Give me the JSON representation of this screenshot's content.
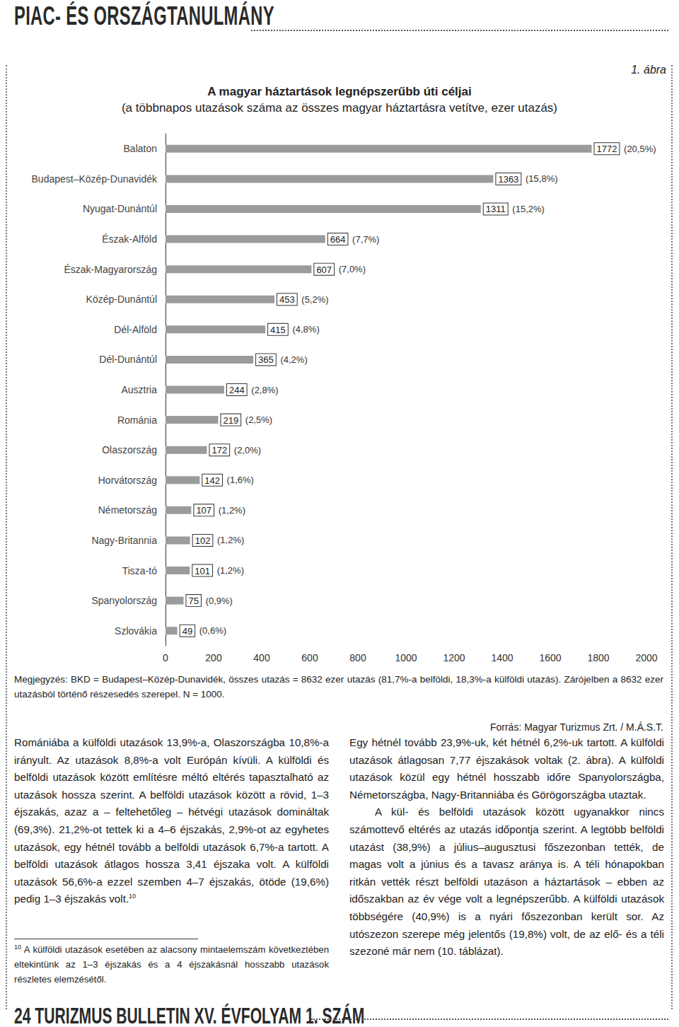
{
  "header": {
    "section": "PIAC- ÉS ORSZÁGTANULMÁNY"
  },
  "figure": {
    "number": "1. ábra",
    "note": "Megjegyzés: BKD = Budapest–Közép-Dunavidék, összes utazás = 8632 ezer utazás (81,7%-a belföldi, 18,3%-a külföldi utazás). Zárójelben a 8632 ezer utazásból történő részesedés szerepel. N = 1000.",
    "source": "Forrás: Magyar Turizmus Zrt. / M.Á.S.T."
  },
  "chart_data": {
    "type": "bar",
    "orientation": "horizontal",
    "title": "A magyar háztartások legnépszerűbb úti céljai",
    "subtitle": "(a többnapos utazások száma az összes magyar háztartásra vetítve, ezer utazás)",
    "categories": [
      "Balaton",
      "Budapest–Közép-Dunavidék",
      "Nyugat-Dunántúl",
      "Észak-Alföld",
      "Észak-Magyarország",
      "Közép-Dunántúl",
      "Dél-Alföld",
      "Dél-Dunántúl",
      "Ausztria",
      "Románia",
      "Olaszország",
      "Horvátország",
      "Németország",
      "Nagy-Britannia",
      "Tisza-tó",
      "Spanyolország",
      "Szlovákia"
    ],
    "values": [
      1772,
      1363,
      1311,
      664,
      607,
      453,
      415,
      365,
      244,
      219,
      172,
      142,
      107,
      102,
      101,
      75,
      49
    ],
    "share_labels": [
      "(20,5%)",
      "(15,8%)",
      "(15,2%)",
      "(7,7%)",
      "(7,0%)",
      "(5,2%)",
      "(4,8%)",
      "(4,2%)",
      "(2,8%)",
      "(2,5%)",
      "(2,0%)",
      "(1,6%)",
      "(1,2%)",
      "(1,2%)",
      "(1,2%)",
      "(0,9%)",
      "(0,6%)"
    ],
    "color": "#9b9b9b",
    "xlim": [
      0,
      2000
    ],
    "xticks": [
      0,
      200,
      400,
      600,
      800,
      1000,
      1200,
      1400,
      1600,
      1800,
      2000
    ],
    "grid": false,
    "data_labels": true
  },
  "columns": [
    {
      "paragraphs": [
        {
          "text": "Romániába a külföldi utazások 13,9%-a, Olaszországba 10,8%-a irányult. Az utazások 8,8%-a volt Európán kívüli. A külföldi és belföldi utazások között említésre méltó eltérés tapasztalható az utazások hossza szerint. A belföldi utazások között a rövid, 1–3 éjszakás, azaz a – feltehetőleg – hétvégi utazások domináltak (69,3%). 21,2%-ot tettek ki a 4–6 éjszakás, 2,9%-ot az egyhetes utazások, egy hétnél tovább a belföldi utazások 6,7%-a tartott. A belföldi utazások átlagos hossza 3,41 éjszaka volt. A külföldi utazások 56,6%-a ezzel szemben 4–7 éjszakás, ötöde (19,6%) pedig 1–3 éjszakás volt.",
          "note_ref": "10"
        }
      ]
    },
    {
      "paragraphs": [
        {
          "text": "Egy hétnél tovább 23,9%-uk, két hétnél 6,2%-uk tartott. A külföldi utazások átlagosan 7,77 éjszakások voltak (2. ábra). A külföldi utazások közül egy hétnél hosszabb időre Spanyolországba, Németországba, Nagy-Britanniába és Görögországba utaztak."
        },
        {
          "text": "A kül- és belföldi utazások között ugyanakkor nincs számottevő eltérés az utazás időpontja szerint. A legtöbb belföldi utazást (38,9%) a július–augusztusi főszezonban tették, de magas volt a június és a tavasz aránya is. A téli hónapokban ritkán vették részt belföldi utazáson a háztartások – ebben az időszakban az év vége volt a legnépszerűbb. A külföldi utazások többségére (40,9%) is a nyári főszezonban került sor. Az utószezon szerepe még jelentős (19,8%) volt, de az elő- és a téli szezoné már nem (10. táblázat).",
          "indent": true
        }
      ]
    }
  ],
  "footnote": {
    "mark": "10",
    "text": "A külföldi utazások esetében az alacsony mintaelemszám következtében eltekintünk az 1–3 éjszakás és a 4 éjszakásnál hosszabb utazások részletes elemzésétől."
  },
  "footer": {
    "page": "24",
    "publication": "TURIZMUS BULLETIN XV. ÉVFOLYAM 1. SZÁM"
  }
}
